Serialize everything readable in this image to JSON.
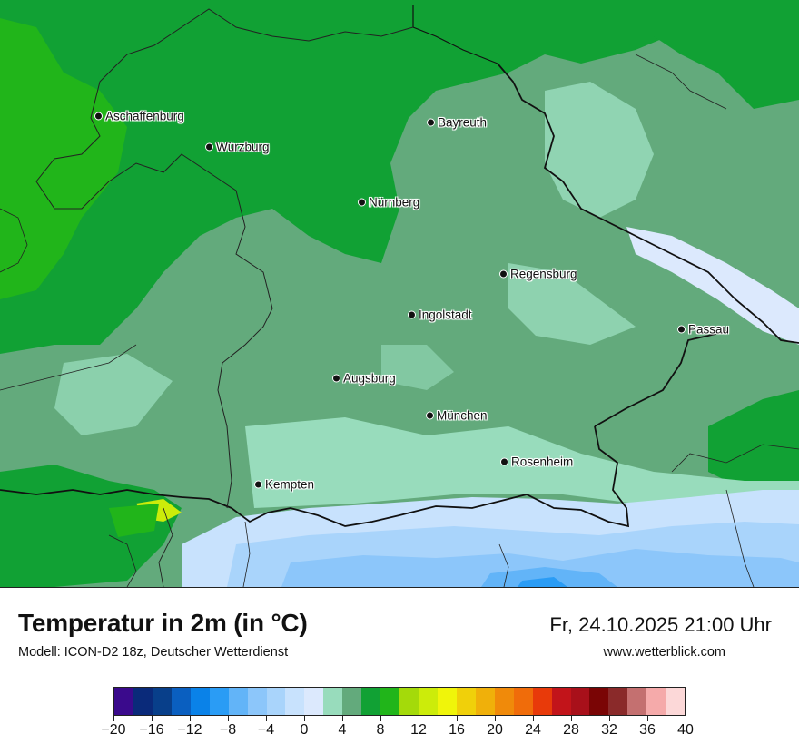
{
  "title": "Temperatur in 2m (in °C)",
  "model": "Modell: ICON-D2 18z, Deutscher Wetterdienst",
  "datetime": "Fr, 24.10.2025 21:00 Uhr",
  "website": "www.wetterblick.com",
  "cities": [
    {
      "id": "aschaffenburg",
      "name": "Aschaffenburg"
    },
    {
      "id": "wuerzburg",
      "name": "Würzburg"
    },
    {
      "id": "bayreuth",
      "name": "Bayreuth"
    },
    {
      "id": "nuernberg",
      "name": "Nürnberg"
    },
    {
      "id": "regensburg",
      "name": "Regensburg"
    },
    {
      "id": "ingolstadt",
      "name": "Ingolstadt"
    },
    {
      "id": "passau",
      "name": "Passau"
    },
    {
      "id": "augsburg",
      "name": "Augsburg"
    },
    {
      "id": "muenchen",
      "name": "München"
    },
    {
      "id": "rosenheim",
      "name": "Rosenheim"
    },
    {
      "id": "kempten",
      "name": "Kempten"
    }
  ],
  "colorbar": {
    "min": -20,
    "max": 40,
    "step": 2,
    "tick_labels": [
      "−20",
      "−16",
      "−12",
      "−8",
      "−4",
      "0",
      "4",
      "8",
      "12",
      "16",
      "20",
      "24",
      "28",
      "32",
      "36",
      "40"
    ],
    "colors": [
      "#3a0a8c",
      "#0a2a7a",
      "#083f8a",
      "#0a5fc0",
      "#0a82e8",
      "#2a9cf5",
      "#62b4f8",
      "#8cc6fa",
      "#a9d4fb",
      "#c8e2fd",
      "#dce9fd",
      "#98dcbc",
      "#63aa7c",
      "#11a134",
      "#21b51a",
      "#a4da0a",
      "#ccec0a",
      "#f0f50a",
      "#f0d00a",
      "#f0b00a",
      "#f08a0a",
      "#f06c0a",
      "#e83a0a",
      "#c2141a",
      "#a8101a",
      "#7a0505",
      "#8a2a2a",
      "#c47070",
      "#f5aaaa",
      "#fcd8d8"
    ]
  },
  "colors": {
    "base_green": "#63aa7c",
    "dark_green": "#11a134",
    "bright_green": "#21b51a",
    "mint": "#98dcbc",
    "pale_blue": "#c8e2fd",
    "blue": "#8cc6fa"
  }
}
